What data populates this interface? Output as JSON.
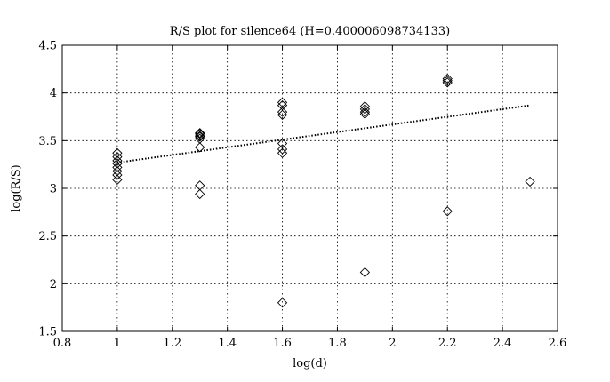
{
  "chart_data": {
    "type": "scatter",
    "title": "R/S plot for silence64 (H=0.400006098734133)",
    "xlabel": "log(d)",
    "ylabel": "log(R/S)",
    "xlim": [
      0.8,
      2.6
    ],
    "ylim": [
      1.5,
      4.5
    ],
    "xticks": [
      "0.8",
      "1",
      "1.2",
      "1.4",
      "1.6",
      "1.8",
      "2",
      "2.2",
      "2.4",
      "2.6"
    ],
    "yticks": [
      "1.5",
      "2",
      "2.5",
      "3",
      "3.5",
      "4",
      "4.5"
    ],
    "grid": true,
    "marker": "diamond",
    "series": [
      {
        "points": [
          [
            1.0,
            3.37
          ],
          [
            1.0,
            3.33
          ],
          [
            1.0,
            3.29
          ],
          [
            1.0,
            3.26
          ],
          [
            1.0,
            3.22
          ],
          [
            1.0,
            3.18
          ],
          [
            1.0,
            3.14
          ],
          [
            1.0,
            3.09
          ],
          [
            1.3,
            3.58
          ],
          [
            1.3,
            3.57
          ],
          [
            1.3,
            3.55
          ],
          [
            1.3,
            3.54
          ],
          [
            1.3,
            3.52
          ],
          [
            1.3,
            3.43
          ],
          [
            1.3,
            3.03
          ],
          [
            1.3,
            2.94
          ],
          [
            1.6,
            3.9
          ],
          [
            1.6,
            3.87
          ],
          [
            1.6,
            3.8
          ],
          [
            1.6,
            3.77
          ],
          [
            1.6,
            3.47
          ],
          [
            1.6,
            3.41
          ],
          [
            1.6,
            3.37
          ],
          [
            1.6,
            1.8
          ],
          [
            1.9,
            3.86
          ],
          [
            1.9,
            3.83
          ],
          [
            1.9,
            3.8
          ],
          [
            1.9,
            3.78
          ],
          [
            1.9,
            2.12
          ],
          [
            2.2,
            4.15
          ],
          [
            2.2,
            4.13
          ],
          [
            2.2,
            4.11
          ],
          [
            2.2,
            2.76
          ],
          [
            2.5,
            3.07
          ]
        ]
      }
    ],
    "fit_line": {
      "x": [
        1.0,
        2.5
      ],
      "y": [
        3.27,
        3.87
      ],
      "style": "dotted"
    }
  }
}
